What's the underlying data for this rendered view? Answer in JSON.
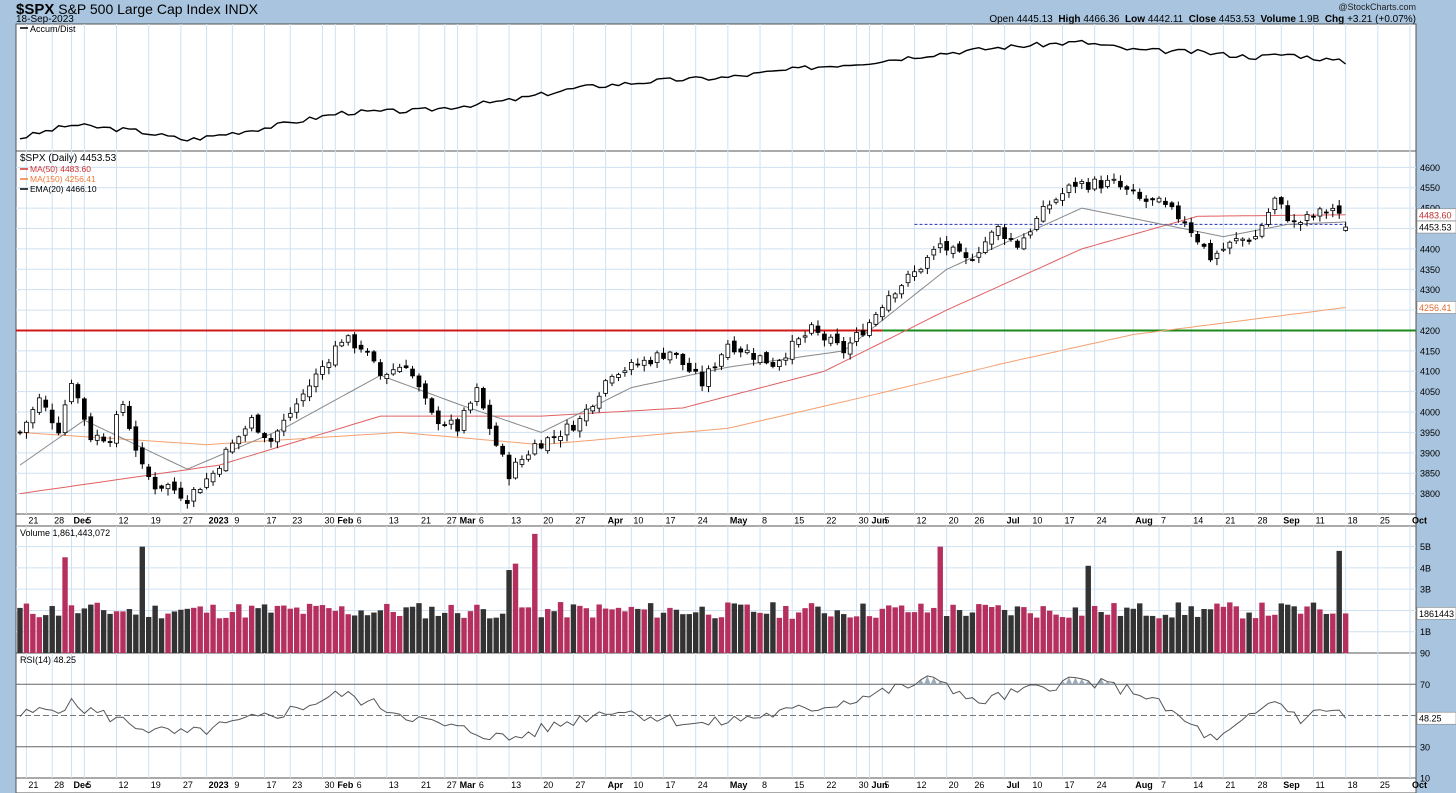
{
  "header": {
    "symbol": "$SPX",
    "name": "S&P 500 Large Cap Index",
    "exchange": "INDX",
    "date": "18-Sep-2023",
    "credit": "@StockCharts.com",
    "open_label": "Open",
    "open": "4445.13",
    "high_label": "High",
    "high": "4466.36",
    "low_label": "Low",
    "low": "4442.11",
    "close_label": "Close",
    "close": "4453.53",
    "volume_label": "Volume",
    "volume": "1.9B",
    "chg_label": "Chg",
    "chg": "+3.21 (+0.07%)"
  },
  "panels": {
    "accum_title": "Accum/Dist",
    "price_title": "$SPX (Daily) 4453.53",
    "legend": [
      {
        "label": "MA(50) 4483.60",
        "color": "#d03030"
      },
      {
        "label": "MA(150) 4256.41",
        "color": "#f07a3a"
      },
      {
        "label": "EMA(20) 4466.10",
        "color": "#000000"
      }
    ],
    "volume_title": "Volume 1,861,443,072",
    "rsi_title": "RSI(14) 48.25"
  },
  "right_labels": {
    "ma50": "4483.60",
    "close": "4453.53",
    "ma150": "4256.41",
    "volume": "1861443",
    "rsi": "48.25"
  },
  "axis": {
    "price_ticks": [
      3800,
      3850,
      3900,
      3950,
      4000,
      4050,
      4100,
      4150,
      4200,
      4250,
      4300,
      4350,
      4400,
      4450,
      4500,
      4550,
      4600
    ],
    "volume_ticks": [
      "1B",
      "2B",
      "3B",
      "4B",
      "5B"
    ],
    "rsi_ticks": [
      10,
      30,
      50,
      70,
      90
    ],
    "date_ticks": [
      {
        "d": "2022-11-21",
        "t": "21"
      },
      {
        "d": "2022-11-28",
        "t": "28"
      },
      {
        "d": "2022-12-01",
        "t": "Dec"
      },
      {
        "d": "2022-12-05",
        "t": "5"
      },
      {
        "d": "2022-12-12",
        "t": "12"
      },
      {
        "d": "2022-12-19",
        "t": "19"
      },
      {
        "d": "2022-12-27",
        "t": "27"
      },
      {
        "d": "2023-01-03",
        "t": "2023"
      },
      {
        "d": "2023-01-09",
        "t": "9"
      },
      {
        "d": "2023-01-17",
        "t": "17"
      },
      {
        "d": "2023-01-23",
        "t": "23"
      },
      {
        "d": "2023-01-30",
        "t": "30"
      },
      {
        "d": "2023-02-01",
        "t": "Feb"
      },
      {
        "d": "2023-02-06",
        "t": "6"
      },
      {
        "d": "2023-02-13",
        "t": "13"
      },
      {
        "d": "2023-02-21",
        "t": "21"
      },
      {
        "d": "2023-02-27",
        "t": "27"
      },
      {
        "d": "2023-03-01",
        "t": "Mar"
      },
      {
        "d": "2023-03-06",
        "t": "6"
      },
      {
        "d": "2023-03-13",
        "t": "13"
      },
      {
        "d": "2023-03-20",
        "t": "20"
      },
      {
        "d": "2023-03-27",
        "t": "27"
      },
      {
        "d": "2023-04-03",
        "t": "Apr"
      },
      {
        "d": "2023-04-10",
        "t": "10"
      },
      {
        "d": "2023-04-17",
        "t": "17"
      },
      {
        "d": "2023-04-24",
        "t": "24"
      },
      {
        "d": "2023-05-01",
        "t": "May"
      },
      {
        "d": "2023-05-08",
        "t": "8"
      },
      {
        "d": "2023-05-15",
        "t": "15"
      },
      {
        "d": "2023-05-22",
        "t": "22"
      },
      {
        "d": "2023-05-30",
        "t": "30"
      },
      {
        "d": "2023-06-01",
        "t": "Jun"
      },
      {
        "d": "2023-06-05",
        "t": "5"
      },
      {
        "d": "2023-06-12",
        "t": "12"
      },
      {
        "d": "2023-06-20",
        "t": "20"
      },
      {
        "d": "2023-06-26",
        "t": "26"
      },
      {
        "d": "2023-07-03",
        "t": "Jul"
      },
      {
        "d": "2023-07-10",
        "t": "10"
      },
      {
        "d": "2023-07-17",
        "t": "17"
      },
      {
        "d": "2023-07-24",
        "t": "24"
      },
      {
        "d": "2023-08-01",
        "t": "Aug"
      },
      {
        "d": "2023-08-07",
        "t": "7"
      },
      {
        "d": "2023-08-14",
        "t": "14"
      },
      {
        "d": "2023-08-21",
        "t": "21"
      },
      {
        "d": "2023-08-28",
        "t": "28"
      },
      {
        "d": "2023-09-01",
        "t": "Sep"
      },
      {
        "d": "2023-09-11",
        "t": "11"
      },
      {
        "d": "2023-09-18",
        "t": "18"
      },
      {
        "d": "2023-09-25",
        "t": "25"
      },
      {
        "d": "2023-10-02",
        "t": "Oct"
      }
    ]
  },
  "colors": {
    "background": "#a8c4de",
    "panel": "#ffffff",
    "grid": "#cfe1f1",
    "resistance": "#d01818",
    "support": "#1a8a1a",
    "dashed": "#2233bb",
    "volume_up": "#b5305e",
    "volume_down": "#333333"
  },
  "chart_data": [
    {
      "type": "candlestick",
      "title": "$SPX (Daily) 4453.53",
      "x_start": "2022-11-18",
      "x_end": "2023-10-02",
      "ylim": [
        3750,
        4640
      ],
      "grid": true,
      "legend": "top-left",
      "anchors": [
        [
          "2022-11-18",
          3950
        ],
        [
          "2022-11-23",
          4030
        ],
        [
          "2022-11-29",
          3960
        ],
        [
          "2022-12-01",
          4080
        ],
        [
          "2022-12-06",
          3940
        ],
        [
          "2022-12-09",
          3940
        ],
        [
          "2022-12-13",
          4020
        ],
        [
          "2022-12-16",
          3860
        ],
        [
          "2022-12-20",
          3820
        ],
        [
          "2022-12-22",
          3820
        ],
        [
          "2022-12-28",
          3790
        ],
        [
          "2023-01-04",
          3850
        ],
        [
          "2023-01-06",
          3900
        ],
        [
          "2023-01-12",
          3980
        ],
        [
          "2023-01-18",
          3930
        ],
        [
          "2023-01-24",
          4020
        ],
        [
          "2023-02-02",
          4180
        ],
        [
          "2023-02-07",
          4160
        ],
        [
          "2023-02-10",
          4090
        ],
        [
          "2023-02-16",
          4120
        ],
        [
          "2023-02-23",
          3990
        ],
        [
          "2023-03-01",
          3960
        ],
        [
          "2023-03-06",
          4050
        ],
        [
          "2023-03-09",
          3920
        ],
        [
          "2023-03-13",
          3850
        ],
        [
          "2023-03-17",
          3920
        ],
        [
          "2023-03-22",
          3940
        ],
        [
          "2023-03-28",
          3980
        ],
        [
          "2023-04-04",
          4100
        ],
        [
          "2023-04-10",
          4110
        ],
        [
          "2023-04-18",
          4150
        ],
        [
          "2023-04-25",
          4070
        ],
        [
          "2023-05-01",
          4170
        ],
        [
          "2023-05-05",
          4140
        ],
        [
          "2023-05-10",
          4120
        ],
        [
          "2023-05-18",
          4200
        ],
        [
          "2023-05-25",
          4150
        ],
        [
          "2023-06-01",
          4220
        ],
        [
          "2023-06-06",
          4290
        ],
        [
          "2023-06-12",
          4340
        ],
        [
          "2023-06-16",
          4410
        ],
        [
          "2023-06-23",
          4370
        ],
        [
          "2023-06-30",
          4450
        ],
        [
          "2023-07-06",
          4410
        ],
        [
          "2023-07-13",
          4510
        ],
        [
          "2023-07-19",
          4560
        ],
        [
          "2023-07-27",
          4560
        ],
        [
          "2023-08-02",
          4520
        ],
        [
          "2023-08-07",
          4510
        ],
        [
          "2023-08-11",
          4470
        ],
        [
          "2023-08-17",
          4380
        ],
        [
          "2023-08-23",
          4420
        ],
        [
          "2023-08-28",
          4430
        ],
        [
          "2023-08-31",
          4520
        ],
        [
          "2023-09-06",
          4460
        ],
        [
          "2023-09-14",
          4500
        ],
        [
          "2023-09-18",
          4453.53
        ]
      ],
      "overlays": [
        {
          "name": "MA(50)",
          "last": 4483.6,
          "points": [
            [
              "2022-11-18",
              3800
            ],
            [
              "2023-01-05",
              3870
            ],
            [
              "2023-02-10",
              3990
            ],
            [
              "2023-03-20",
              3990
            ],
            [
              "2023-04-20",
              4010
            ],
            [
              "2023-05-20",
              4100
            ],
            [
              "2023-06-20",
              4250
            ],
            [
              "2023-07-20",
              4400
            ],
            [
              "2023-08-15",
              4480
            ],
            [
              "2023-09-18",
              4483.6
            ]
          ]
        },
        {
          "name": "MA(150)",
          "last": 4256.41,
          "points": [
            [
              "2022-11-18",
              3950
            ],
            [
              "2023-01-01",
              3920
            ],
            [
              "2023-02-15",
              3950
            ],
            [
              "2023-03-20",
              3920
            ],
            [
              "2023-04-30",
              3960
            ],
            [
              "2023-06-01",
              4040
            ],
            [
              "2023-07-01",
              4120
            ],
            [
              "2023-08-01",
              4190
            ],
            [
              "2023-09-18",
              4256.41
            ]
          ]
        },
        {
          "name": "EMA(20)",
          "last": 4466.1,
          "points": [
            [
              "2022-11-18",
              3870
            ],
            [
              "2022-12-05",
              3980
            ],
            [
              "2022-12-28",
              3860
            ],
            [
              "2023-01-20",
              3960
            ],
            [
              "2023-02-10",
              4090
            ],
            [
              "2023-03-01",
              4020
            ],
            [
              "2023-03-20",
              3950
            ],
            [
              "2023-04-10",
              4060
            ],
            [
              "2023-05-01",
              4110
            ],
            [
              "2023-05-25",
              4150
            ],
            [
              "2023-06-20",
              4350
            ],
            [
              "2023-07-20",
              4500
            ],
            [
              "2023-08-20",
              4430
            ],
            [
              "2023-09-05",
              4460
            ],
            [
              "2023-09-18",
              4466.1
            ]
          ]
        }
      ],
      "lines": [
        {
          "name": "resistance",
          "y": 4200,
          "from": "2022-11-18",
          "to": "2023-06-05"
        },
        {
          "name": "support",
          "y": 4200,
          "from": "2023-06-05",
          "to": "2023-10-02"
        },
        {
          "name": "prior-high",
          "y": 4460,
          "from": "2023-06-12",
          "to": "2023-09-18"
        }
      ]
    },
    {
      "type": "line",
      "title": "Accum/Dist",
      "ylim": [
        0,
        1
      ],
      "points": [
        [
          "2022-11-18",
          0.05
        ],
        [
          "2022-12-01",
          0.18
        ],
        [
          "2022-12-15",
          0.12
        ],
        [
          "2022-12-28",
          0.03
        ],
        [
          "2023-01-15",
          0.15
        ],
        [
          "2023-02-02",
          0.3
        ],
        [
          "2023-02-20",
          0.32
        ],
        [
          "2023-03-13",
          0.42
        ],
        [
          "2023-03-28",
          0.55
        ],
        [
          "2023-04-15",
          0.62
        ],
        [
          "2023-05-01",
          0.65
        ],
        [
          "2023-05-18",
          0.75
        ],
        [
          "2023-06-01",
          0.8
        ],
        [
          "2023-06-15",
          0.88
        ],
        [
          "2023-07-01",
          0.95
        ],
        [
          "2023-07-20",
          1.0
        ],
        [
          "2023-08-01",
          0.92
        ],
        [
          "2023-08-15",
          0.9
        ],
        [
          "2023-08-28",
          0.85
        ],
        [
          "2023-09-05",
          0.88
        ],
        [
          "2023-09-18",
          0.8
        ]
      ]
    },
    {
      "type": "bar",
      "title": "Volume 1,861,443,072",
      "ylim": [
        0,
        5.5
      ],
      "unit": "B",
      "typical": 2.0,
      "spikes": [
        [
          "2022-12-16",
          5.0
        ],
        [
          "2023-03-17",
          5.6
        ],
        [
          "2023-03-14",
          4.2
        ],
        [
          "2023-03-13",
          3.9
        ],
        [
          "2022-11-30",
          4.5
        ],
        [
          "2023-06-16",
          5.0
        ],
        [
          "2023-07-21",
          4.1
        ],
        [
          "2023-09-15",
          4.8
        ]
      ],
      "last": 1.86
    },
    {
      "type": "line",
      "title": "RSI(14) 48.25",
      "ylim": [
        10,
        90
      ],
      "points": [
        [
          "2022-11-18",
          50
        ],
        [
          "2022-12-01",
          57
        ],
        [
          "2022-12-20",
          40
        ],
        [
          "2022-12-28",
          38
        ],
        [
          "2023-01-20",
          52
        ],
        [
          "2023-02-02",
          64
        ],
        [
          "2023-02-23",
          45
        ],
        [
          "2023-03-13",
          35
        ],
        [
          "2023-04-04",
          54
        ],
        [
          "2023-04-25",
          44
        ],
        [
          "2023-05-20",
          56
        ],
        [
          "2023-06-16",
          74
        ],
        [
          "2023-06-26",
          58
        ],
        [
          "2023-07-19",
          73
        ],
        [
          "2023-08-02",
          65
        ],
        [
          "2023-08-18",
          33
        ],
        [
          "2023-08-31",
          60
        ],
        [
          "2023-09-07",
          48
        ],
        [
          "2023-09-14",
          55
        ],
        [
          "2023-09-18",
          48.25
        ]
      ],
      "reference_lines": [
        30,
        50,
        70
      ],
      "last": 48.25
    }
  ]
}
